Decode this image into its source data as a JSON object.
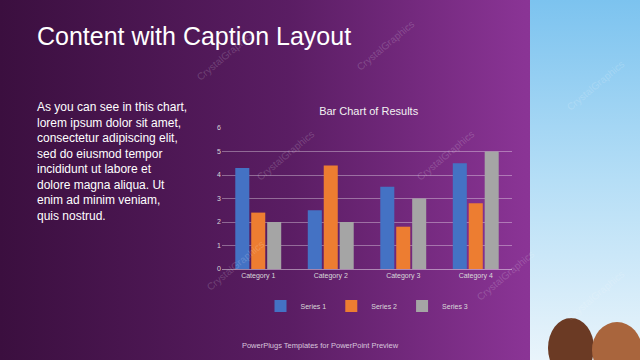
{
  "slide": {
    "title": "Content with Caption Layout",
    "caption": [
      "As you can see in this chart,",
      "lorem ipsum dolor sit amet,",
      "consectetur adipiscing elit,",
      "sed do eiusmod tempor",
      "incididunt ut labore et",
      "dolore magna aliqua. Ut",
      "enim ad minim veniam,",
      "quis nostrud."
    ],
    "footer": "PowerPlugs Templates for PowerPoint Preview",
    "watermark": "CrystalGraphics"
  },
  "chart_data": {
    "type": "bar",
    "title": "Bar Chart of Results",
    "categories": [
      "Category 1",
      "Category 2",
      "Category 3",
      "Category 4"
    ],
    "series": [
      {
        "name": "Series 1",
        "color": "#4472c4",
        "values": [
          4.3,
          2.5,
          3.5,
          4.5
        ]
      },
      {
        "name": "Series 2",
        "color": "#ed7d31",
        "values": [
          2.4,
          4.4,
          1.8,
          2.8
        ]
      },
      {
        "name": "Series 3",
        "color": "#a5a5a5",
        "values": [
          2,
          2,
          3,
          5
        ]
      }
    ],
    "ylim": [
      0,
      6
    ],
    "yticks": [
      0,
      1,
      2,
      3,
      4,
      5,
      6
    ],
    "grid": true,
    "legend": "bottom"
  }
}
